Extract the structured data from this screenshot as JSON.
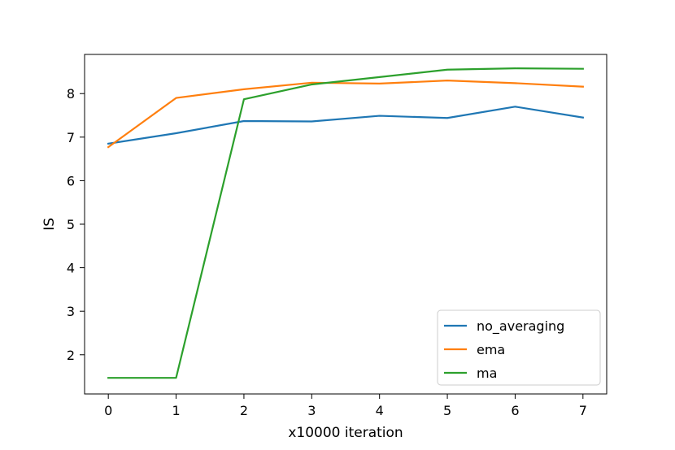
{
  "chart_data": {
    "type": "line",
    "title": "",
    "xlabel": "x10000 iteration",
    "ylabel": "IS",
    "x": [
      0,
      1,
      2,
      3,
      4,
      5,
      6,
      7
    ],
    "xlim": [
      -0.35,
      7.35
    ],
    "ylim": [
      1.1,
      8.9
    ],
    "xticks": [
      0,
      1,
      2,
      3,
      4,
      5,
      6,
      7
    ],
    "yticks": [
      2,
      3,
      4,
      5,
      6,
      7,
      8
    ],
    "grid": false,
    "legend_position": "lower-right",
    "series": [
      {
        "name": "no_averaging",
        "color": "#1f77b4",
        "values": [
          6.85,
          7.09,
          7.37,
          7.36,
          7.49,
          7.44,
          7.7,
          7.45
        ]
      },
      {
        "name": "ema",
        "color": "#ff7f0e",
        "values": [
          6.77,
          7.9,
          8.1,
          8.25,
          8.23,
          8.3,
          8.24,
          8.16
        ]
      },
      {
        "name": "ma",
        "color": "#2ca02c",
        "values": [
          1.47,
          1.47,
          7.87,
          8.21,
          8.38,
          8.55,
          8.58,
          8.57
        ]
      }
    ]
  }
}
